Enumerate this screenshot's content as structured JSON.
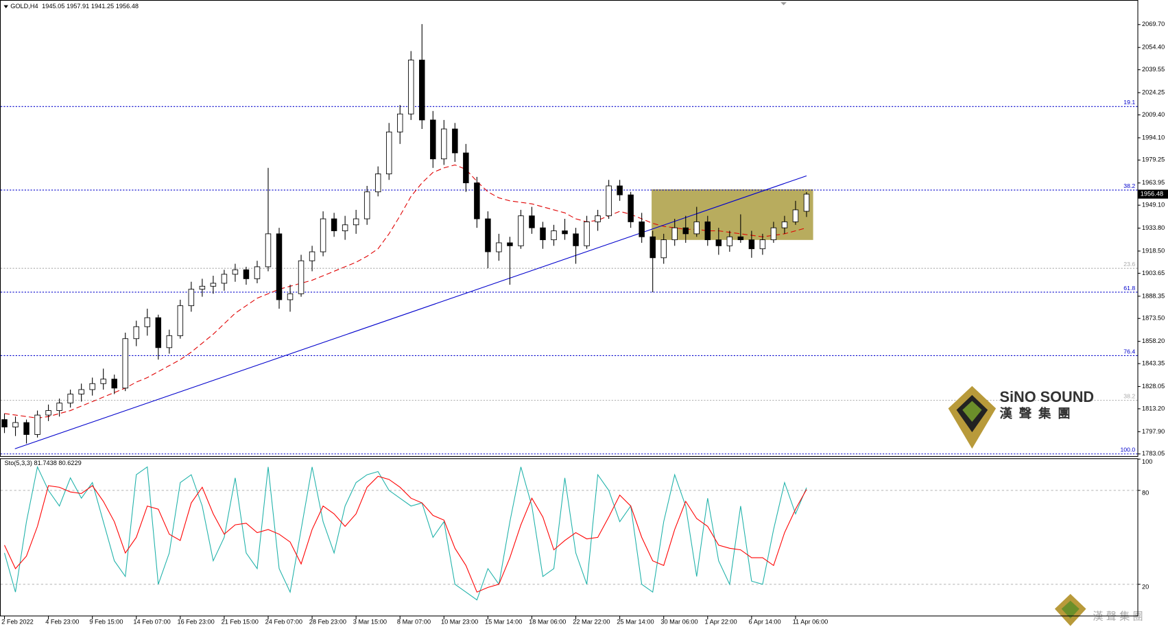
{
  "chart_data": [
    {
      "type": "candlestick",
      "title": "GOLD,H4",
      "subtitle": "1945.05 1957.91 1941.25 1956.48",
      "categories": [
        "2 Feb 2022",
        null,
        null,
        null,
        "4 Feb 23:00",
        null,
        null,
        null,
        "9 Feb 15:00",
        null,
        null,
        null,
        "14 Feb 07:00",
        null,
        null,
        null,
        "16 Feb 23:00",
        null,
        null,
        null,
        "21 Feb 15:00",
        null,
        null,
        null,
        "24 Feb 07:00",
        null,
        null,
        null,
        "28 Feb 23:00",
        null,
        null,
        null,
        "3 Mar 15:00",
        null,
        null,
        null,
        "8 Mar 07:00",
        null,
        null,
        null,
        "10 Mar 23:00",
        null,
        null,
        null,
        "15 Mar 14:00",
        null,
        null,
        null,
        "18 Mar 06:00",
        null,
        null,
        null,
        "22 Mar 22:00",
        null,
        null,
        null,
        "25 Mar 14:00",
        null,
        null,
        null,
        "30 Mar 06:00",
        null,
        null,
        null,
        "1 Apr 22:00",
        null,
        null,
        null,
        "6 Apr 14:00",
        null,
        null,
        null,
        "11 Apr 06:00",
        null
      ],
      "open": [
        1806,
        1801,
        1804,
        1796,
        1809,
        1812,
        1817,
        1823,
        1826,
        1830,
        1833,
        1827,
        1860,
        1868,
        1874,
        1854,
        1862,
        1882,
        1893,
        1895,
        1897,
        1903,
        1906,
        1900,
        1908,
        1930,
        1886,
        1890,
        1912,
        1918,
        1940,
        1932,
        1936,
        1940,
        1958,
        1970,
        1998,
        2010,
        2046,
        2006,
        1980,
        2000,
        1984,
        1964,
        1940,
        1918,
        1924,
        1922,
        1942,
        1934,
        1926,
        1932,
        1930,
        1922,
        1938,
        1942,
        1962,
        1956,
        1938,
        1928,
        1914,
        1926,
        1934,
        1930,
        1938,
        1926,
        1922,
        1928,
        1926,
        1920,
        1926,
        1934,
        1938,
        1945.05
      ],
      "high": [
        1810,
        1808,
        1806,
        1812,
        1816,
        1820,
        1826,
        1830,
        1834,
        1840,
        1836,
        1864,
        1872,
        1880,
        1876,
        1866,
        1886,
        1898,
        1900,
        1902,
        1906,
        1910,
        1908,
        1912,
        1974,
        1934,
        1896,
        1916,
        1922,
        1945,
        1944,
        1942,
        1946,
        1962,
        1975,
        2004,
        2016,
        2052,
        2070,
        2012,
        2006,
        2004,
        1990,
        1968,
        1945,
        1930,
        1928,
        1946,
        1948,
        1938,
        1936,
        1940,
        1934,
        1942,
        1946,
        1966,
        1966,
        1958,
        1944,
        1932,
        1930,
        1940,
        1942,
        1948,
        1942,
        1934,
        1932,
        1943,
        1932,
        1930,
        1938,
        1942,
        1952,
        1957.91
      ],
      "low": [
        1797,
        1795,
        1790,
        1794,
        1805,
        1808,
        1814,
        1818,
        1822,
        1826,
        1823,
        1825,
        1855,
        1862,
        1846,
        1850,
        1860,
        1878,
        1888,
        1890,
        1892,
        1898,
        1896,
        1897,
        1905,
        1880,
        1878,
        1888,
        1905,
        1915,
        1928,
        1926,
        1930,
        1936,
        1955,
        1966,
        1990,
        2006,
        2000,
        1974,
        1976,
        1978,
        1958,
        1934,
        1907,
        1912,
        1896,
        1920,
        1930,
        1920,
        1922,
        1926,
        1910,
        1920,
        1932,
        1940,
        1952,
        1934,
        1924,
        1891,
        1910,
        1922,
        1924,
        1928,
        1922,
        1916,
        1918,
        1924,
        1914,
        1916,
        1924,
        1930,
        1936,
        1941.25
      ],
      "close": [
        1801,
        1804,
        1796,
        1809,
        1812,
        1817,
        1823,
        1826,
        1830,
        1833,
        1827,
        1860,
        1868,
        1874,
        1854,
        1862,
        1882,
        1893,
        1895,
        1897,
        1903,
        1906,
        1900,
        1908,
        1930,
        1886,
        1890,
        1912,
        1918,
        1940,
        1932,
        1936,
        1940,
        1958,
        1970,
        1998,
        2010,
        2046,
        2006,
        1980,
        2000,
        1984,
        1964,
        1940,
        1918,
        1924,
        1922,
        1942,
        1934,
        1926,
        1932,
        1930,
        1922,
        1938,
        1942,
        1962,
        1956,
        1938,
        1928,
        1914,
        1926,
        1934,
        1930,
        1938,
        1926,
        1922,
        1928,
        1926,
        1920,
        1926,
        1934,
        1938,
        1946,
        1956.48
      ],
      "up_color": "#ffffff",
      "down_color": "#000000",
      "last_price_color": "#000000",
      "ma": {
        "color": "#e00000",
        "values": [
          1810,
          1809,
          1808,
          1807,
          1808,
          1810,
          1812,
          1815,
          1818,
          1821,
          1824,
          1827,
          1831,
          1834,
          1838,
          1842,
          1846,
          1851,
          1857,
          1863,
          1870,
          1877,
          1882,
          1887,
          1890,
          1893,
          1895,
          1897,
          1899,
          1902,
          1905,
          1908,
          1911,
          1915,
          1920,
          1930,
          1942,
          1955,
          1964,
          1971,
          1974,
          1976,
          1973,
          1965,
          1958,
          1954,
          1952,
          1951,
          1950,
          1948,
          1946,
          1944,
          1940,
          1938,
          1939,
          1942,
          1945,
          1943,
          1940,
          1937,
          1935,
          1934,
          1933,
          1933,
          1932,
          1932,
          1931,
          1930,
          1929,
          1928,
          1929,
          1930,
          1932,
          1934
        ]
      },
      "trendline": {
        "color": "#0000cc",
        "x": [
          0.95,
          73
        ],
        "y": [
          1786.5,
          1968.7
        ]
      },
      "box": {
        "color": "#b8ac5e",
        "x": [
          58.9,
          73.6
        ],
        "y": [
          1925.9,
          1959.7
        ]
      },
      "fib_levels": [
        {
          "label": "19.1",
          "value": 2014.96,
          "color": "#0000cc"
        },
        {
          "label": "38.2",
          "value": 1959.2,
          "color": "#0000cc"
        },
        {
          "label": "23.6",
          "value": 1906.96,
          "color": "#aaaaaa"
        },
        {
          "label": "61.8",
          "value": 1891.04,
          "color": "#0000cc"
        },
        {
          "label": "76.4",
          "value": 1848.7,
          "color": "#0000cc"
        },
        {
          "label": "38.2",
          "value": 1818.84,
          "color": "#aaaaaa"
        },
        {
          "label": "100.0",
          "value": 1783.05,
          "color": "#0000cc"
        }
      ],
      "ylim": [
        1781.6,
        2085.1
      ],
      "yticks": [
        {
          "value": 2069.7,
          "label": "2069.70"
        },
        {
          "value": 2054.4,
          "label": "2054.40"
        },
        2039.55,
        {
          "value": 2024.25,
          "label": "2024.25"
        },
        {
          "value": 2009.4,
          "label": "2009.40"
        },
        {
          "value": 1994.1,
          "label": "1994.10"
        },
        {
          "value": 1979.25,
          "label": "1979.25"
        },
        {
          "value": 1963.95,
          "label": "1963.95"
        },
        {
          "value": 1949.1,
          "label": "1949.10"
        },
        {
          "value": 1933.8,
          "label": "1933.80"
        },
        {
          "value": 1918.5,
          "label": "1918.50"
        },
        1903.65,
        1888.35,
        {
          "value": 1873.5,
          "label": "1873.50"
        },
        {
          "value": 1858.2,
          "label": "1858.20"
        },
        1843.35,
        1828.05,
        {
          "value": 1813.2,
          "label": "1813.20"
        },
        {
          "value": 1797.9,
          "label": "1797.90"
        },
        1783.05
      ]
    },
    {
      "type": "line",
      "title": "Sto(5,3,3) 81.7438 80.6229",
      "series": [
        {
          "color": "#20b2aa",
          "values": [
            40,
            15,
            60,
            95,
            80,
            70,
            88,
            75,
            85,
            60,
            35,
            25,
            90,
            95,
            20,
            40,
            85,
            90,
            70,
            35,
            50,
            88,
            40,
            30,
            95,
            30,
            15,
            55,
            95,
            60,
            40,
            70,
            85,
            90,
            92,
            80,
            75,
            70,
            72,
            50,
            60,
            20,
            15,
            10,
            30,
            20,
            60,
            95,
            70,
            25,
            30,
            88,
            40,
            20,
            90,
            80,
            60,
            70,
            20,
            15,
            60,
            90,
            70,
            25,
            75,
            35,
            20,
            70,
            22,
            20,
            55,
            85,
            65,
            81.74
          ]
        },
        {
          "color": "#ff0000",
          "values": [
            45,
            30,
            38,
            57,
            83,
            82,
            79,
            78,
            83,
            73,
            60,
            40,
            50,
            70,
            68,
            52,
            48,
            72,
            82,
            65,
            52,
            58,
            59,
            53,
            55,
            52,
            47,
            33,
            55,
            70,
            65,
            57,
            65,
            82,
            89,
            87,
            82,
            75,
            72,
            64,
            61,
            43,
            32,
            15,
            18,
            20,
            37,
            58,
            75,
            63,
            42,
            48,
            53,
            49,
            50,
            63,
            77,
            70,
            50,
            35,
            32,
            55,
            73,
            62,
            57,
            45,
            43,
            42,
            37,
            37,
            32,
            53,
            68,
            80.62
          ]
        }
      ],
      "ylim": [
        0,
        100
      ],
      "yticks": [
        100,
        80,
        20
      ]
    }
  ],
  "brand": {
    "name": "SiNO SOUND",
    "cn": "漢聲集團",
    "footer": "漢 聲 集 團"
  }
}
